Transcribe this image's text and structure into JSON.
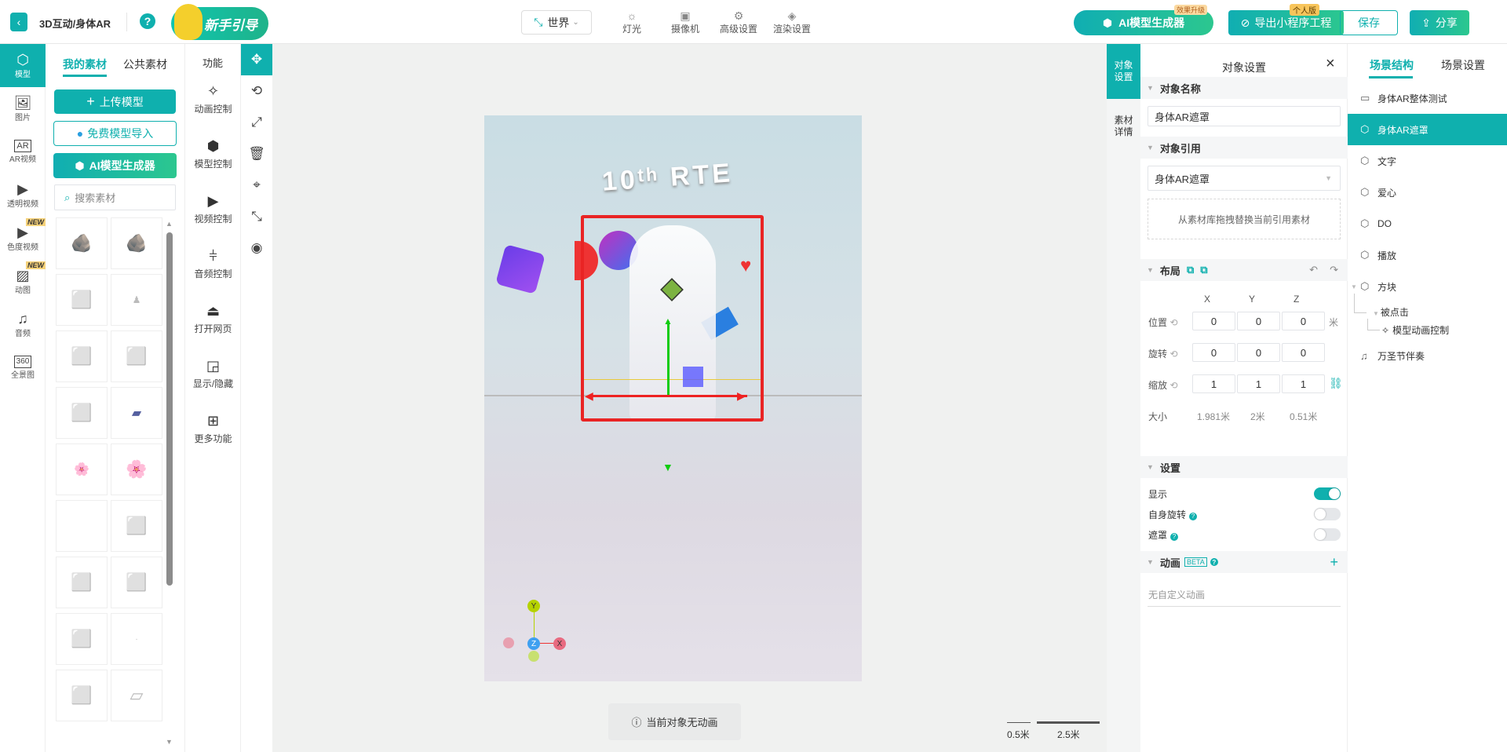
{
  "topbar": {
    "back_icon": "chevron-left-icon",
    "title": "3D互动/身体AR",
    "help": "?",
    "guide_label": "新手引导",
    "world_label": "世界",
    "tools": [
      {
        "label": "灯光",
        "icon": "sun-icon"
      },
      {
        "label": "摄像机",
        "icon": "camera-icon"
      },
      {
        "label": "高级设置",
        "icon": "gear-icon"
      },
      {
        "label": "渲染设置",
        "icon": "paint-bucket-icon"
      }
    ],
    "ai_label": "AI模型生成器",
    "ai_badge": "效果升级",
    "export_label": "导出小程序工程",
    "export_badge": "个人版",
    "save_label": "保存",
    "share_label": "分享"
  },
  "leftnav": {
    "items": [
      {
        "label": "模型",
        "icon": "cube-icon"
      },
      {
        "label": "图片",
        "icon": "image-icon"
      },
      {
        "label": "AR视频",
        "icon": "ar-icon"
      },
      {
        "label": "透明视频",
        "icon": "video-icon"
      },
      {
        "label": "色度视频",
        "icon": "chroma-video-icon",
        "badge": "NEW"
      },
      {
        "label": "动图",
        "icon": "gif-icon",
        "badge": "NEW"
      },
      {
        "label": "音频",
        "icon": "music-icon"
      },
      {
        "label": "全景图",
        "icon": "panorama-icon"
      }
    ]
  },
  "assets": {
    "tabs": [
      "我的素材",
      "公共素材"
    ],
    "upload_label": "上传模型",
    "import_label": "免费模型导入",
    "ai_label": "AI模型生成器",
    "search_placeholder": "搜索素材"
  },
  "func": {
    "title": "功能",
    "items": [
      {
        "label": "动画控制",
        "icon": "sparkle-icon"
      },
      {
        "label": "模型控制",
        "icon": "model-icon"
      },
      {
        "label": "视频控制",
        "icon": "play-icon"
      },
      {
        "label": "音频控制",
        "icon": "sliders-icon"
      },
      {
        "label": "打开网页",
        "icon": "screen-icon"
      },
      {
        "label": "显示/隐藏",
        "icon": "pip-icon"
      },
      {
        "label": "更多功能",
        "icon": "grid-icon"
      }
    ]
  },
  "tools": [
    "move-icon",
    "rotate-icon",
    "scale-icon",
    "delete-icon",
    "focus-icon",
    "fullscreen-icon",
    "eye-icon"
  ],
  "canvas": {
    "toast": "当前对象无动画",
    "scale_a": "0.5米",
    "scale_b": "2.5米",
    "axes": {
      "y": "Y",
      "z": "Z",
      "x": "X"
    }
  },
  "objtabs": [
    "对象设置",
    "素材详情"
  ],
  "settings": {
    "title": "对象设置",
    "name_section": "对象名称",
    "name_value": "身体AR遮罩",
    "ref_section": "对象引用",
    "ref_value": "身体AR遮罩",
    "ref_hint": "从素材库拖拽替换当前引用素材",
    "layout_section": "布局",
    "cols": [
      "X",
      "Y",
      "Z"
    ],
    "rows": [
      {
        "label": "位置",
        "values": [
          "0",
          "0",
          "0"
        ],
        "unit": "米"
      },
      {
        "label": "旋转",
        "values": [
          "0",
          "0",
          "0"
        ],
        "unit": ""
      },
      {
        "label": "缩放",
        "values": [
          "1",
          "1",
          "1"
        ],
        "unit": ""
      }
    ],
    "size_label": "大小",
    "size_values": [
      "1.981米",
      "2米",
      "0.51米"
    ],
    "settings_section": "设置",
    "toggles": [
      {
        "label": "显示",
        "on": true
      },
      {
        "label": "自身旋转",
        "on": false,
        "help": true
      },
      {
        "label": "遮罩",
        "on": false,
        "help": true
      }
    ],
    "anim_section": "动画",
    "anim_badge": "BETA",
    "anim_empty": "无自定义动画"
  },
  "scene": {
    "tabs": [
      "场景结构",
      "场景设置"
    ],
    "items": [
      {
        "label": "身体AR整体测试",
        "icon": "folder-icon"
      },
      {
        "label": "身体AR遮罩",
        "icon": "cube-icon",
        "active": true
      },
      {
        "label": "文字",
        "icon": "cube-icon"
      },
      {
        "label": "爱心",
        "icon": "cube-icon"
      },
      {
        "label": "DO",
        "icon": "cube-icon"
      },
      {
        "label": "播放",
        "icon": "cube-icon"
      },
      {
        "label": "方块",
        "icon": "cube-icon"
      }
    ],
    "sub1": "被点击",
    "sub2": "模型动画控制",
    "last": "万圣节伴奏"
  },
  "colors": {
    "accent": "#0fb0ae",
    "gradient_end": "#2cc78f"
  }
}
